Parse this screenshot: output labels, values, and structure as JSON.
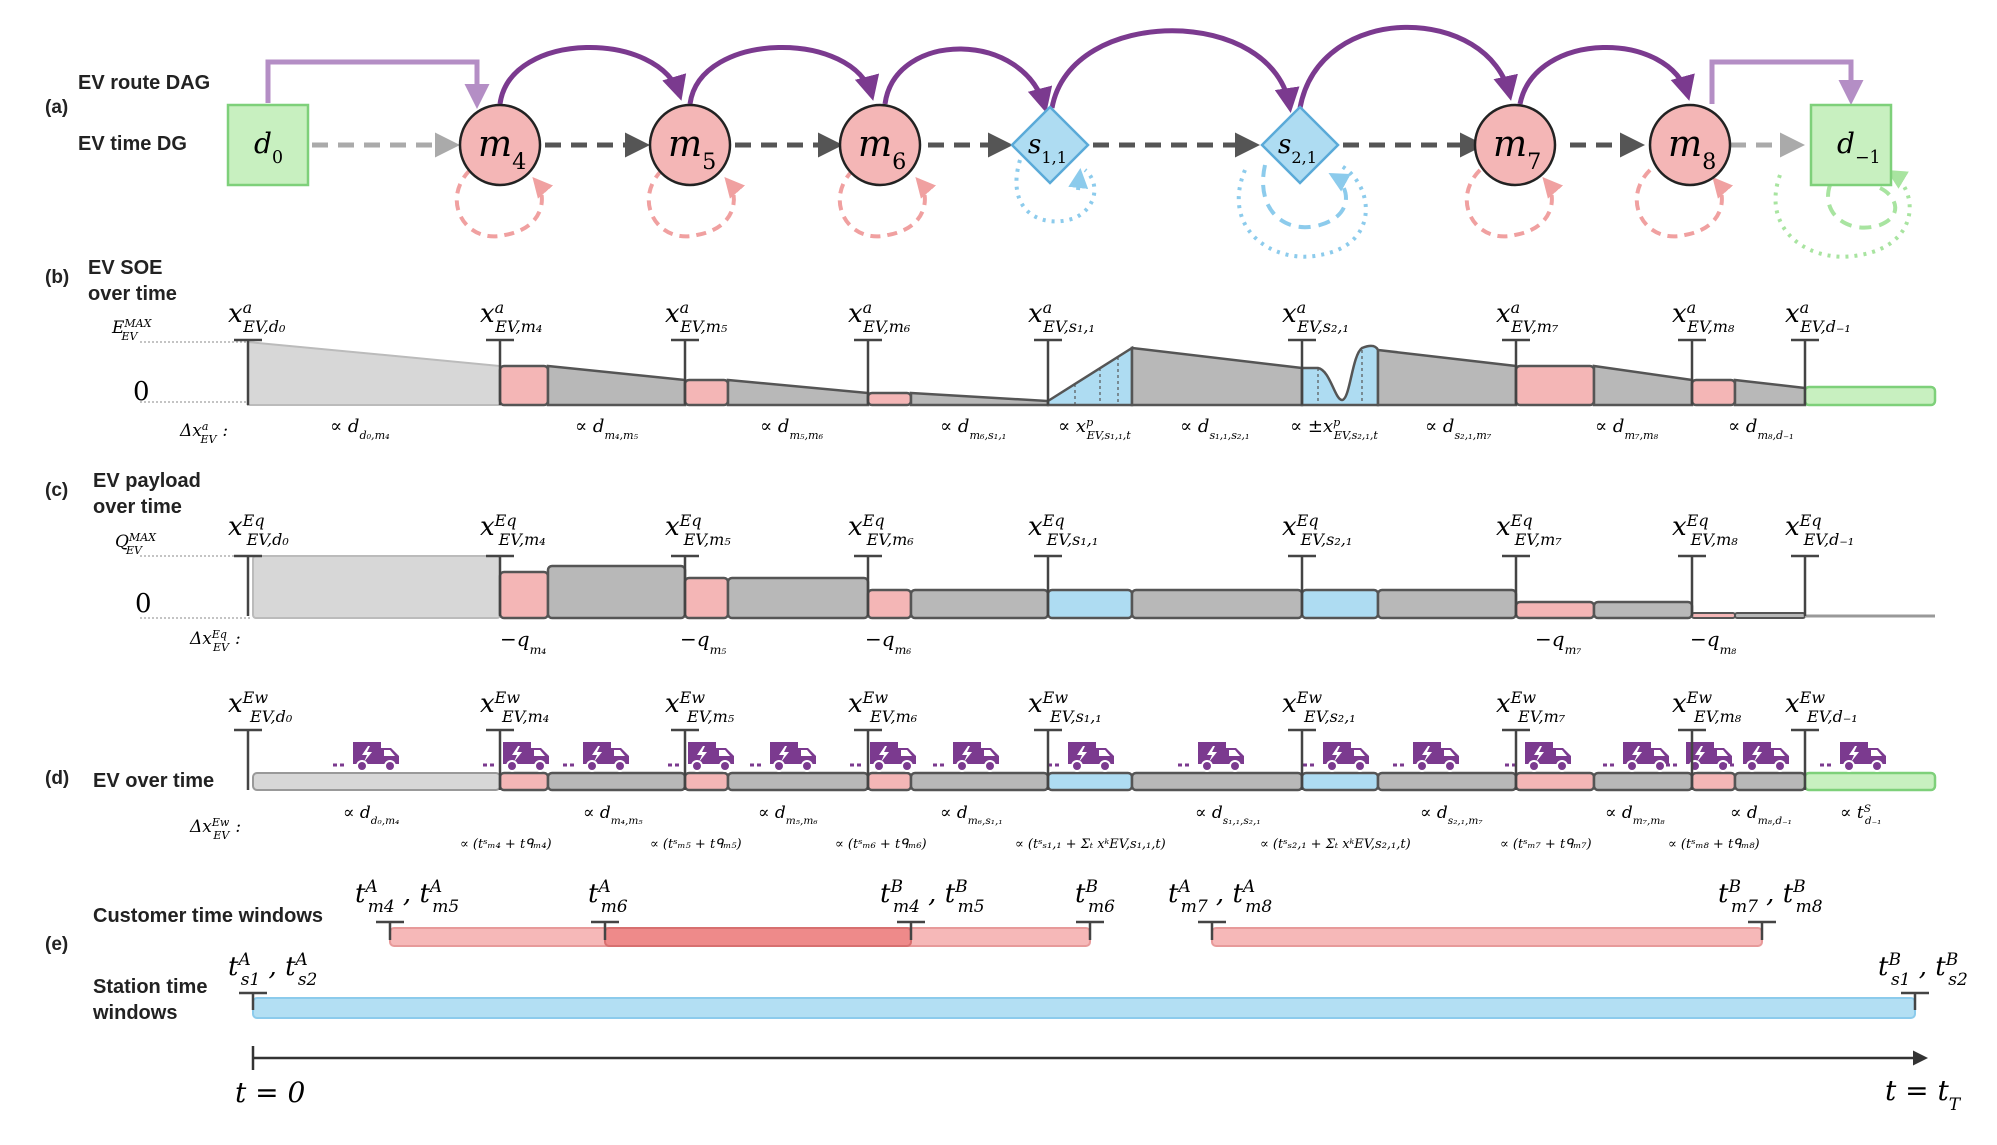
{
  "panels": {
    "a": "(a)",
    "b": "(b)",
    "c": "(c)",
    "d": "(d)",
    "e": "(e)"
  },
  "labels": {
    "route_dag": "EV route DAG",
    "time_dg": "EV time DG",
    "soe_line1": "EV SOE",
    "soe_line2": "over time",
    "payload_line1": "EV payload",
    "payload_line2": "over time",
    "ev_over_time": "EV over time",
    "customer_tw": "Customer time windows",
    "station_tw_line1": "Station time",
    "station_tw_line2": "windows"
  },
  "nodes": [
    {
      "id": "d0",
      "type": "depot",
      "base": "d",
      "sub": "0"
    },
    {
      "id": "m4",
      "type": "customer",
      "base": "m",
      "sub": "4"
    },
    {
      "id": "m5",
      "type": "customer",
      "base": "m",
      "sub": "5"
    },
    {
      "id": "m6",
      "type": "customer",
      "base": "m",
      "sub": "6"
    },
    {
      "id": "s11",
      "type": "station",
      "base": "s",
      "sub": "1,1"
    },
    {
      "id": "s21",
      "type": "station",
      "base": "s",
      "sub": "2,1"
    },
    {
      "id": "m7",
      "type": "customer",
      "base": "m",
      "sub": "7"
    },
    {
      "id": "m8",
      "type": "customer",
      "base": "m",
      "sub": "8"
    },
    {
      "id": "dm1",
      "type": "depot",
      "base": "d",
      "sub": "−1"
    }
  ],
  "soe": {
    "emax_base": "E",
    "emax_sub": "EV",
    "emax_sup": "MAX",
    "zero": "0",
    "delta_base": "Δx",
    "delta_sup": "a",
    "delta_sub": "EV",
    "delta_colon": ":",
    "markers": [
      {
        "sup": "a",
        "sub": "EV,d₀"
      },
      {
        "sup": "a",
        "sub": "EV,m₄"
      },
      {
        "sup": "a",
        "sub": "EV,m₅"
      },
      {
        "sup": "a",
        "sub": "EV,m₆"
      },
      {
        "sup": "a",
        "sub": "EV,s₁,₁"
      },
      {
        "sup": "a",
        "sub": "EV,s₂,₁"
      },
      {
        "sup": "a",
        "sub": "EV,m₇"
      },
      {
        "sup": "a",
        "sub": "EV,m₈"
      },
      {
        "sup": "a",
        "sub": "EV,d₋₁"
      }
    ],
    "deltas": [
      {
        "base": "∝ d",
        "sub": "d₀,m₄"
      },
      {
        "base": "∝ d",
        "sub": "m₄,m₅"
      },
      {
        "base": "∝ d",
        "sub": "m₅,m₆"
      },
      {
        "base": "∝ d",
        "sub": "m₆,s₁,₁"
      },
      {
        "base": "∝ x",
        "sup": "p",
        "sub": "EV,s₁,₁,t"
      },
      {
        "base": "∝ d",
        "sub": "s₁,₁,s₂,₁"
      },
      {
        "base": "∝ ±x",
        "sup": "p",
        "sub": "EV,s₂,₁,t"
      },
      {
        "base": "∝ d",
        "sub": "s₂,₁,m₇"
      },
      {
        "base": "∝ d",
        "sub": "m₇,m₈"
      },
      {
        "base": "∝ d",
        "sub": "m₈,d₋₁"
      }
    ]
  },
  "payload": {
    "qmax_base": "Q",
    "qmax_sub": "EV",
    "qmax_sup": "MAX",
    "zero": "0",
    "delta_base": "Δx",
    "delta_sup": "Eq",
    "delta_sub": "EV",
    "delta_colon": ":",
    "markers": [
      {
        "sup": "Eq",
        "sub": "EV,d₀"
      },
      {
        "sup": "Eq",
        "sub": "EV,m₄"
      },
      {
        "sup": "Eq",
        "sub": "EV,m₅"
      },
      {
        "sup": "Eq",
        "sub": "EV,m₆"
      },
      {
        "sup": "Eq",
        "sub": "EV,s₁,₁"
      },
      {
        "sup": "Eq",
        "sub": "EV,s₂,₁"
      },
      {
        "sup": "Eq",
        "sub": "EV,m₇"
      },
      {
        "sup": "Eq",
        "sub": "EV,m₈"
      },
      {
        "sup": "Eq",
        "sub": "EV,d₋₁"
      }
    ],
    "deltas": [
      {
        "base": "−q",
        "sub": "m₄"
      },
      {
        "base": "−q",
        "sub": "m₅"
      },
      {
        "base": "−q",
        "sub": "m₆"
      },
      {
        "base": "−q",
        "sub": "m₇"
      },
      {
        "base": "−q",
        "sub": "m₈"
      }
    ]
  },
  "ev": {
    "delta_base": "Δx",
    "delta_sup": "Ew",
    "delta_sub": "EV",
    "delta_colon": ":",
    "markers": [
      {
        "sup": "Ew",
        "sub": "EV,d₀"
      },
      {
        "sup": "Ew",
        "sub": "EV,m₄"
      },
      {
        "sup": "Ew",
        "sub": "EV,m₅"
      },
      {
        "sup": "Ew",
        "sub": "EV,m₆"
      },
      {
        "sup": "Ew",
        "sub": "EV,s₁,₁"
      },
      {
        "sup": "Ew",
        "sub": "EV,s₂,₁"
      },
      {
        "sup": "Ew",
        "sub": "EV,m₇"
      },
      {
        "sup": "Ew",
        "sub": "EV,m₈"
      },
      {
        "sup": "Ew",
        "sub": "EV,d₋₁"
      }
    ],
    "deltas_travel": [
      {
        "base": "∝ d",
        "sub": "d₀,m₄"
      },
      {
        "base": "∝ d",
        "sub": "m₄,m₅"
      },
      {
        "base": "∝ d",
        "sub": "m₅,m₆"
      },
      {
        "base": "∝ d",
        "sub": "m₆,s₁,₁"
      },
      {
        "base": "∝ d",
        "sub": "s₁,₁,s₂,₁"
      },
      {
        "base": "∝ d",
        "sub": "s₂,₁,m₇"
      },
      {
        "base": "∝ d",
        "sub": "m₇,m₈"
      },
      {
        "base": "∝ d",
        "sub": "m₈,d₋₁"
      },
      {
        "base": "∝ t",
        "sup": "S",
        "sub": "d₋₁"
      }
    ],
    "deltas_service": [
      "∝ (tˢₘ₄ + tᑫₘ₄)",
      "∝ (tˢₘ₅ + tᑫₘ₅)",
      "∝ (tˢₘ₆ + tᑫₘ₆)",
      "∝ (tˢₛ₁,₁ + Σₜ xᵏEV,s₁,₁,t)",
      "∝ (tˢₛ₂,₁ + Σₜ xᵏEV,s₂,₁,t)",
      "∝ (tˢₘ₇ + tᑫₘ₇)",
      "∝ (tˢₘ₈ + tᑫₘ₈)"
    ]
  },
  "windows": {
    "customer_markers": [
      "t^A_{m4}, t^A_{m5}",
      "t^A_{m6}",
      "t^B_{m4}, t^B_{m5}",
      "t^B_{m6}",
      "t^A_{m7}, t^A_{m8}",
      "t^B_{m7}, t^B_{m8}"
    ],
    "station_markers": [
      "t^A_{s1}, t^A_{s2}",
      "t^B_{s1}, t^B_{s2}"
    ]
  },
  "axis": {
    "start": "t = 0",
    "end_base": "t = t",
    "end_sub": "T"
  },
  "colors": {
    "customer": "#f4b6b6",
    "customer_stroke": "#222222",
    "station": "#aedcf2",
    "station_stroke": "#5aaad8",
    "depot": "#c8f0c0",
    "depot_stroke": "#7ed07a",
    "travel": "#bdbdbd",
    "route_arc": "#7b3a8f",
    "route_light": "#b48ec5",
    "customer_window": "#f6b8b8",
    "customer_window_dark": "#ee8a8a",
    "station_window": "#b3dff3",
    "truck": "#7b3a8f"
  }
}
